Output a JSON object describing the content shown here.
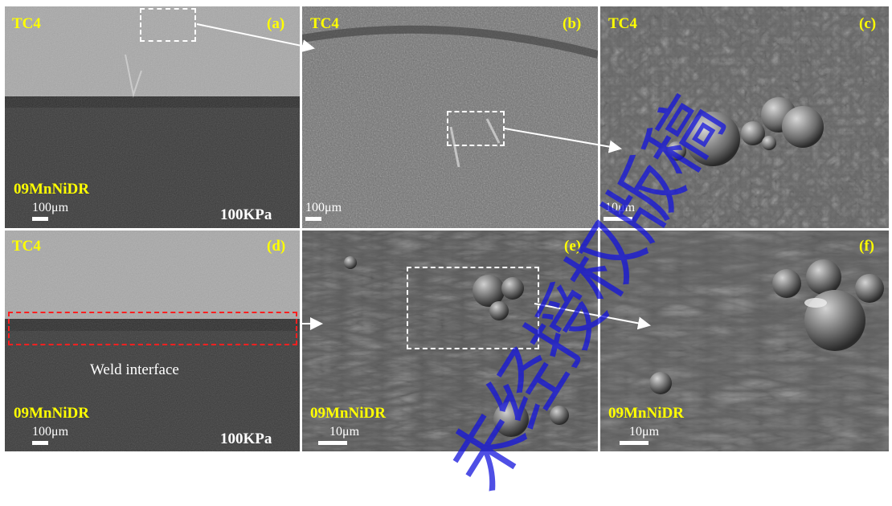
{
  "panels": [
    {
      "letter": "(a)",
      "material_top": "TC4",
      "material_bottom": "09MnNiDR",
      "scale": "100μm",
      "pressure": "100KPa"
    },
    {
      "letter": "(b)",
      "material_top": "TC4",
      "scale": "100μm"
    },
    {
      "letter": "(c)",
      "material_top": "TC4",
      "scale": "10μm"
    },
    {
      "letter": "(d)",
      "material_top": "TC4",
      "material_bottom": "09MnNiDR",
      "scale": "100μm",
      "pressure": "100KPa",
      "annotation": "Weld interface"
    },
    {
      "letter": "(e)",
      "material_bottom": "09MnNiDR",
      "scale": "10μm"
    },
    {
      "letter": "(f)",
      "material_bottom": "09MnNiDR",
      "scale": "10μm"
    }
  ],
  "watermark": "未经授权版稿"
}
